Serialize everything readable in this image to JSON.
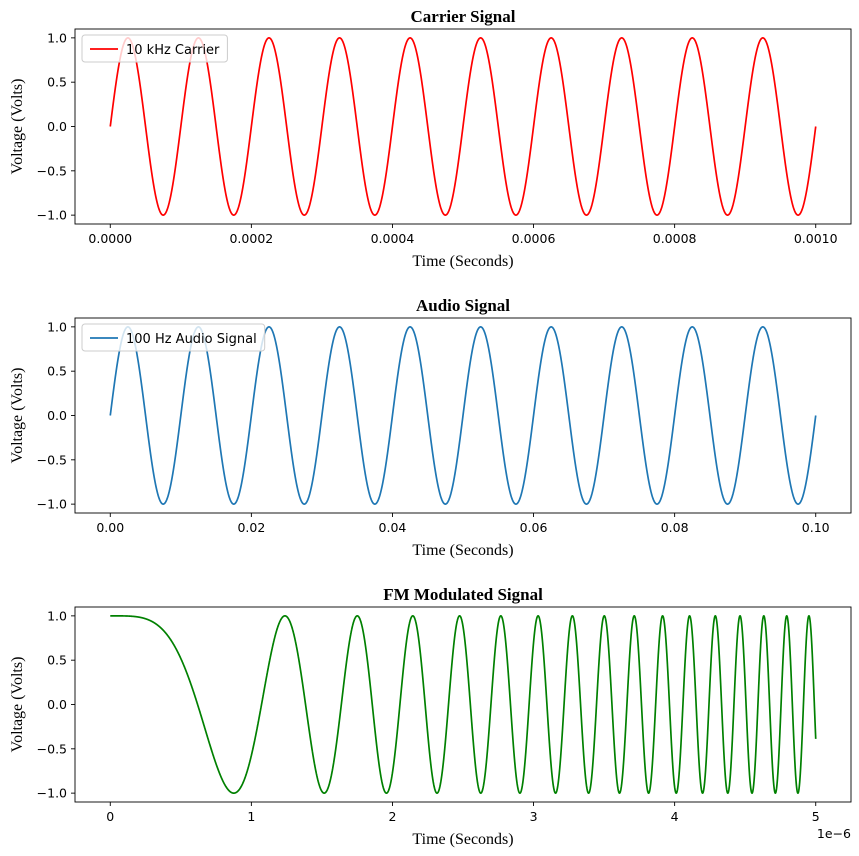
{
  "chart_data": [
    {
      "type": "line",
      "title": "Carrier Signal",
      "xlabel": "Time (Seconds)",
      "ylabel": "Voltage (Volts)",
      "xlim": [
        -5e-05,
        0.00105
      ],
      "ylim": [
        -1.1,
        1.1
      ],
      "xticks": [
        0,
        0.0002,
        0.0004,
        0.0006,
        0.0008,
        0.001
      ],
      "xtick_labels": [
        "0.0000",
        "0.0002",
        "0.0004",
        "0.0006",
        "0.0008",
        "0.0010"
      ],
      "yticks": [
        1.0,
        0.5,
        0.0,
        -0.5,
        -1.0
      ],
      "ytick_labels": [
        "1.0",
        "0.5",
        "0.0",
        "−0.5",
        "−1.0"
      ],
      "offset_text": "",
      "legend": "top-left",
      "grid": false,
      "series": [
        {
          "name": "10 kHz Carrier",
          "color": "#ff0000",
          "function": "sin",
          "amplitude": 1.0,
          "frequency_hz": 10000,
          "x_start": 0,
          "x_end": 0.001
        }
      ]
    },
    {
      "type": "line",
      "title": "Audio Signal",
      "xlabel": "Time (Seconds)",
      "ylabel": "Voltage (Volts)",
      "xlim": [
        -0.005,
        0.105
      ],
      "ylim": [
        -1.1,
        1.1
      ],
      "xticks": [
        0,
        0.02,
        0.04,
        0.06,
        0.08,
        0.1
      ],
      "xtick_labels": [
        "0.00",
        "0.02",
        "0.04",
        "0.06",
        "0.08",
        "0.10"
      ],
      "yticks": [
        1.0,
        0.5,
        0.0,
        -0.5,
        -1.0
      ],
      "ytick_labels": [
        "1.0",
        "0.5",
        "0.0",
        "−0.5",
        "−1.0"
      ],
      "offset_text": "",
      "legend": "top-left",
      "grid": false,
      "series": [
        {
          "name": "100 Hz Audio Signal",
          "color": "#1f77b4",
          "function": "sin",
          "amplitude": 1.0,
          "frequency_hz": 100,
          "x_start": 0,
          "x_end": 0.1
        }
      ]
    },
    {
      "type": "line",
      "title": "FM Modulated Signal",
      "xlabel": "Time (Seconds)",
      "ylabel": "Voltage (Volts)",
      "xlim": [
        -0.25,
        5.25
      ],
      "ylim": [
        -1.1,
        1.1
      ],
      "xticks": [
        0,
        1,
        2,
        3,
        4,
        5
      ],
      "xtick_labels": [
        "0",
        "1",
        "2",
        "3",
        "4",
        "5"
      ],
      "yticks": [
        1.0,
        0.5,
        0.0,
        -0.5,
        -1.0
      ],
      "ytick_labels": [
        "1.0",
        "0.5",
        "0.0",
        "−0.5",
        "−1.0"
      ],
      "offset_text": "1e−6",
      "legend": "none",
      "grid": false,
      "series": [
        {
          "color": "#008000",
          "function": "cos(k*x^2)",
          "amplitude": 1.0,
          "phase_coefficient": 4.1,
          "x_start": 0,
          "x_end": 5
        }
      ]
    }
  ]
}
